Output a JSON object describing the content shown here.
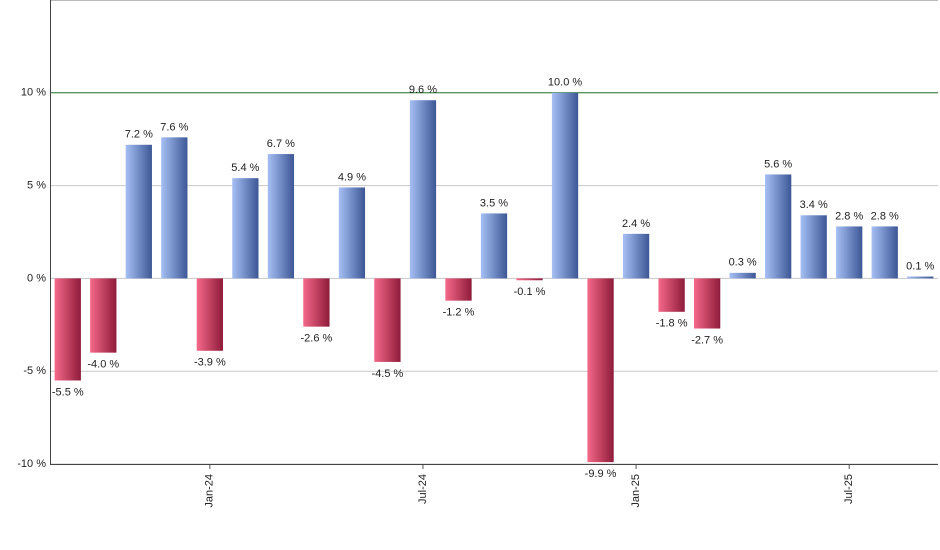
{
  "chart_data": {
    "type": "bar",
    "categories": [
      null,
      null,
      null,
      null,
      "Jan-24",
      null,
      null,
      null,
      null,
      null,
      "Jul-24",
      null,
      null,
      null,
      null,
      null,
      "Jan-25",
      null,
      null,
      null,
      null,
      null,
      "Jul-25",
      null,
      null
    ],
    "values": [
      -5.5,
      -4.0,
      7.2,
      7.6,
      -3.9,
      5.4,
      6.7,
      -2.6,
      4.9,
      -4.5,
      9.6,
      -1.2,
      3.5,
      -0.1,
      10.0,
      -9.9,
      2.4,
      -1.8,
      -2.7,
      0.3,
      5.6,
      3.4,
      2.8,
      2.8,
      0.1
    ],
    "value_labels": [
      "-5.5 %",
      "-4.0 %",
      "7.2 %",
      "7.6 %",
      "-3.9 %",
      "5.4 %",
      "6.7 %",
      "-2.6 %",
      "4.9 %",
      "-4.5 %",
      "9.6 %",
      "-1.2 %",
      "3.5 %",
      "-0.1 %",
      "10.0 %",
      "-9.9 %",
      "2.4 %",
      "-1.8 %",
      "-2.7 %",
      "0.3 %",
      "5.6 %",
      "3.4 %",
      "2.8 %",
      "2.8 %",
      "0.1 %"
    ],
    "positive_colors": [
      "#a6c0f5",
      "#3d5796"
    ],
    "negative_colors": [
      "#f5698a",
      "#8e1b3a"
    ],
    "ylim": [
      -10,
      15
    ],
    "yticks": [
      {
        "value": -10,
        "label": "-10 %"
      },
      {
        "value": -5,
        "label": "-5 %"
      },
      {
        "value": 0,
        "label": "0 %"
      },
      {
        "value": 5,
        "label": "5 %"
      },
      {
        "value": 10,
        "label": "10 %"
      }
    ],
    "grid": true,
    "reference_line": 10,
    "reference_color": "#2e7d32"
  }
}
